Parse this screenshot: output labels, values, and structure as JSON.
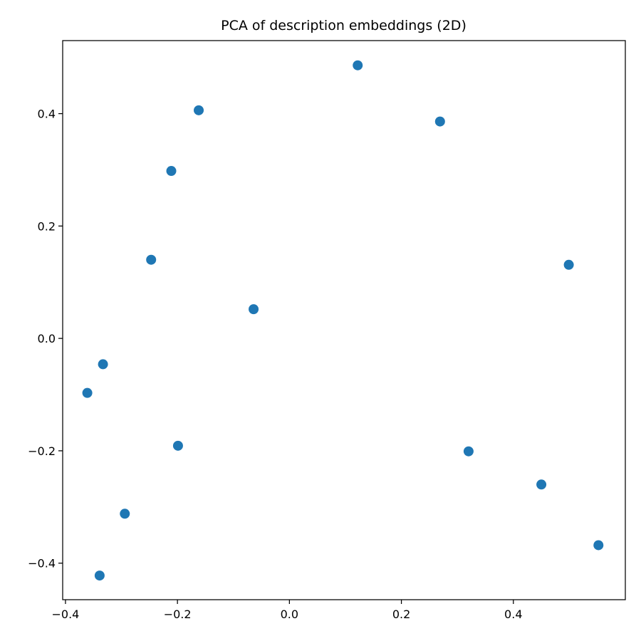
{
  "chart_data": {
    "type": "scatter",
    "title": "PCA of description embeddings (2D)",
    "xlabel": "",
    "ylabel": "",
    "xlim": [
      -0.405,
      0.6
    ],
    "ylim": [
      -0.465,
      0.53
    ],
    "xticks": [
      -0.4,
      -0.2,
      0.0,
      0.2,
      0.4
    ],
    "xtick_labels": [
      "−0.4",
      "−0.2",
      "0.0",
      "0.2",
      "0.4"
    ],
    "yticks": [
      -0.4,
      -0.2,
      0.0,
      0.2,
      0.4
    ],
    "ytick_labels": [
      "−0.4",
      "−0.2",
      "0.0",
      "0.2",
      "0.4"
    ],
    "grid": false,
    "legend": "none",
    "marker_color": "#1f77b4",
    "points": [
      {
        "x": 0.122,
        "y": 0.486
      },
      {
        "x": 0.269,
        "y": 0.386
      },
      {
        "x": -0.162,
        "y": 0.406
      },
      {
        "x": -0.211,
        "y": 0.298
      },
      {
        "x": -0.247,
        "y": 0.14
      },
      {
        "x": 0.499,
        "y": 0.131
      },
      {
        "x": -0.064,
        "y": 0.052
      },
      {
        "x": -0.333,
        "y": -0.046
      },
      {
        "x": -0.361,
        "y": -0.097
      },
      {
        "x": -0.199,
        "y": -0.191
      },
      {
        "x": 0.32,
        "y": -0.201
      },
      {
        "x": 0.45,
        "y": -0.26
      },
      {
        "x": -0.294,
        "y": -0.312
      },
      {
        "x": 0.552,
        "y": -0.368
      },
      {
        "x": -0.339,
        "y": -0.422
      }
    ]
  }
}
